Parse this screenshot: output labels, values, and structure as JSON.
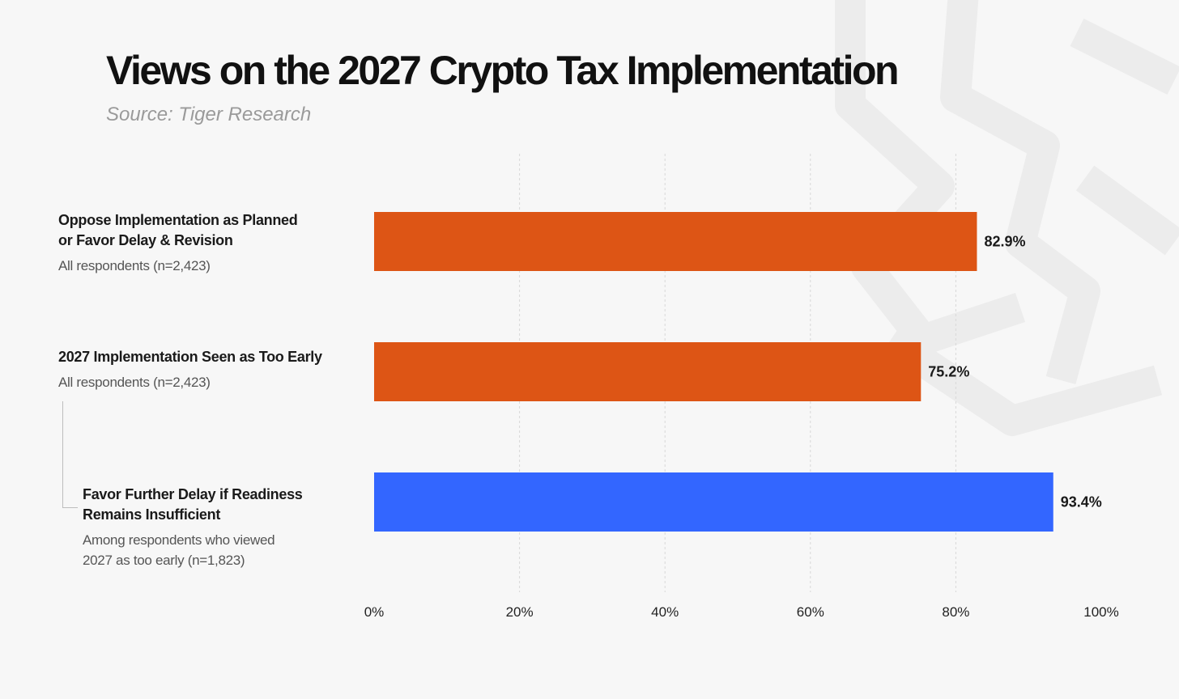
{
  "colors": {
    "background": "#f7f7f7",
    "orange": "#dd5515",
    "blue": "#3366ff",
    "grid": "#d8d8d8"
  },
  "chart_data": {
    "type": "bar",
    "orientation": "horizontal",
    "title": "Views on the 2027 Crypto Tax Implementation",
    "subtitle": "Source: Tiger Research",
    "xlim": [
      0,
      100
    ],
    "x_ticks": [
      "0%",
      "20%",
      "40%",
      "60%",
      "80%",
      "100%"
    ],
    "x_tick_values": [
      0,
      20,
      40,
      60,
      80,
      100
    ],
    "grid": "vertical dashed",
    "categories": [
      {
        "name_lines": [
          "Oppose Implementation as Planned",
          "or Favor Delay & Revision"
        ],
        "note_lines": [
          "All respondents (n=2,423)"
        ],
        "value": 82.9,
        "label": "82.9%",
        "color": "#dd5515",
        "indented": false
      },
      {
        "name_lines": [
          "2027 Implementation Seen as Too Early"
        ],
        "note_lines": [
          "All respondents (n=2,423)"
        ],
        "value": 75.2,
        "label": "75.2%",
        "color": "#dd5515",
        "indented": false
      },
      {
        "name_lines": [
          "Favor Further Delay if Readiness",
          "Remains Insufficient"
        ],
        "note_lines": [
          "Among respondents who viewed",
          "2027 as too early (n=1,823)"
        ],
        "value": 93.4,
        "label": "93.4%",
        "color": "#3366ff",
        "indented": true
      }
    ]
  }
}
